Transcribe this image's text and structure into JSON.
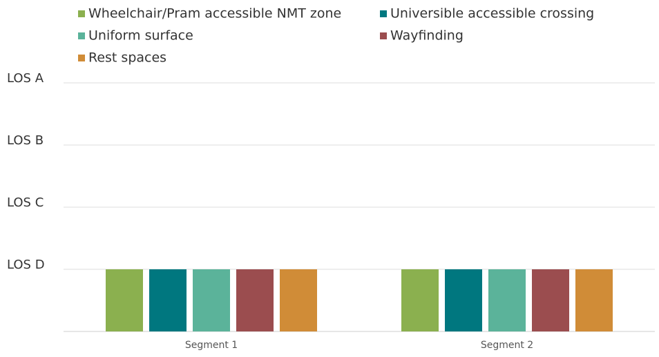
{
  "chart_data": {
    "type": "bar",
    "categories": [
      "Segment 1",
      "Segment 2"
    ],
    "series": [
      {
        "name": "Wheelchair/Pram accessible NMT zone",
        "color": "#8bb04f",
        "values": [
          1,
          1
        ]
      },
      {
        "name": "Universible accessible crossing",
        "color": "#00777f",
        "values": [
          1,
          1
        ]
      },
      {
        "name": "Uniform surface",
        "color": "#5bb39a",
        "values": [
          1,
          1
        ]
      },
      {
        "name": "Wayfinding",
        "color": "#9b4d4f",
        "values": [
          1,
          1
        ]
      },
      {
        "name": "Rest spaces",
        "color": "#d08c37",
        "values": [
          1,
          1
        ]
      }
    ],
    "ylim": [
      0,
      4
    ],
    "yticks": [
      {
        "value": 1,
        "label": "LOS D"
      },
      {
        "value": 2,
        "label": "LOS C"
      },
      {
        "value": 3,
        "label": "LOS B"
      },
      {
        "value": 4,
        "label": "LOS A"
      }
    ],
    "grid": true,
    "legend": "top"
  }
}
